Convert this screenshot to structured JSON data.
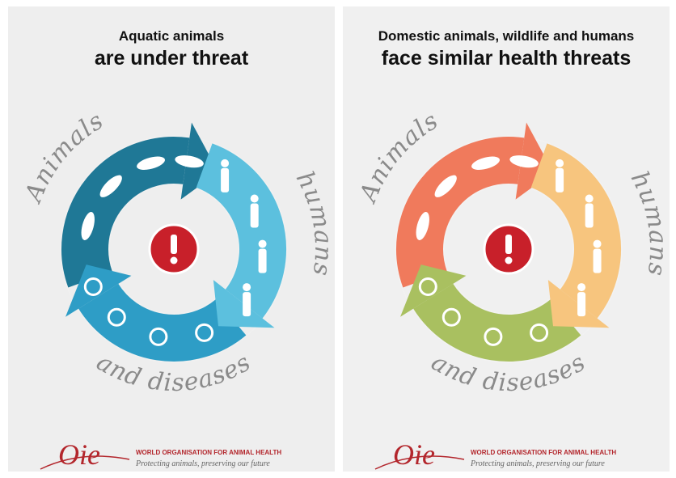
{
  "panels": [
    {
      "title_line1": "Aquatic animals",
      "title_line2": "are under threat",
      "labels": {
        "animals": "Animals",
        "humans": "humans",
        "diseases": "and diseases"
      },
      "colors": [
        "#1f7896",
        "#5cc0de",
        "#2e9dc6"
      ],
      "logo": {
        "mark": "Oie",
        "name": "WORLD ORGANISATION FOR ANIMAL HEALTH",
        "tagline": "Protecting animals, preserving our future"
      }
    },
    {
      "title_line1": "Domestic animals, wildlife and humans",
      "title_line2": "face similar health threats",
      "labels": {
        "animals": "Animals",
        "humans": "humans",
        "diseases": "and diseases"
      },
      "colors": [
        "#f07a5c",
        "#f7c57e",
        "#a9c060"
      ],
      "logo": {
        "mark": "Oie",
        "name": "WORLD ORGANISATION FOR ANIMAL HEALTH",
        "tagline": "Protecting animals, preserving our future"
      }
    }
  ]
}
